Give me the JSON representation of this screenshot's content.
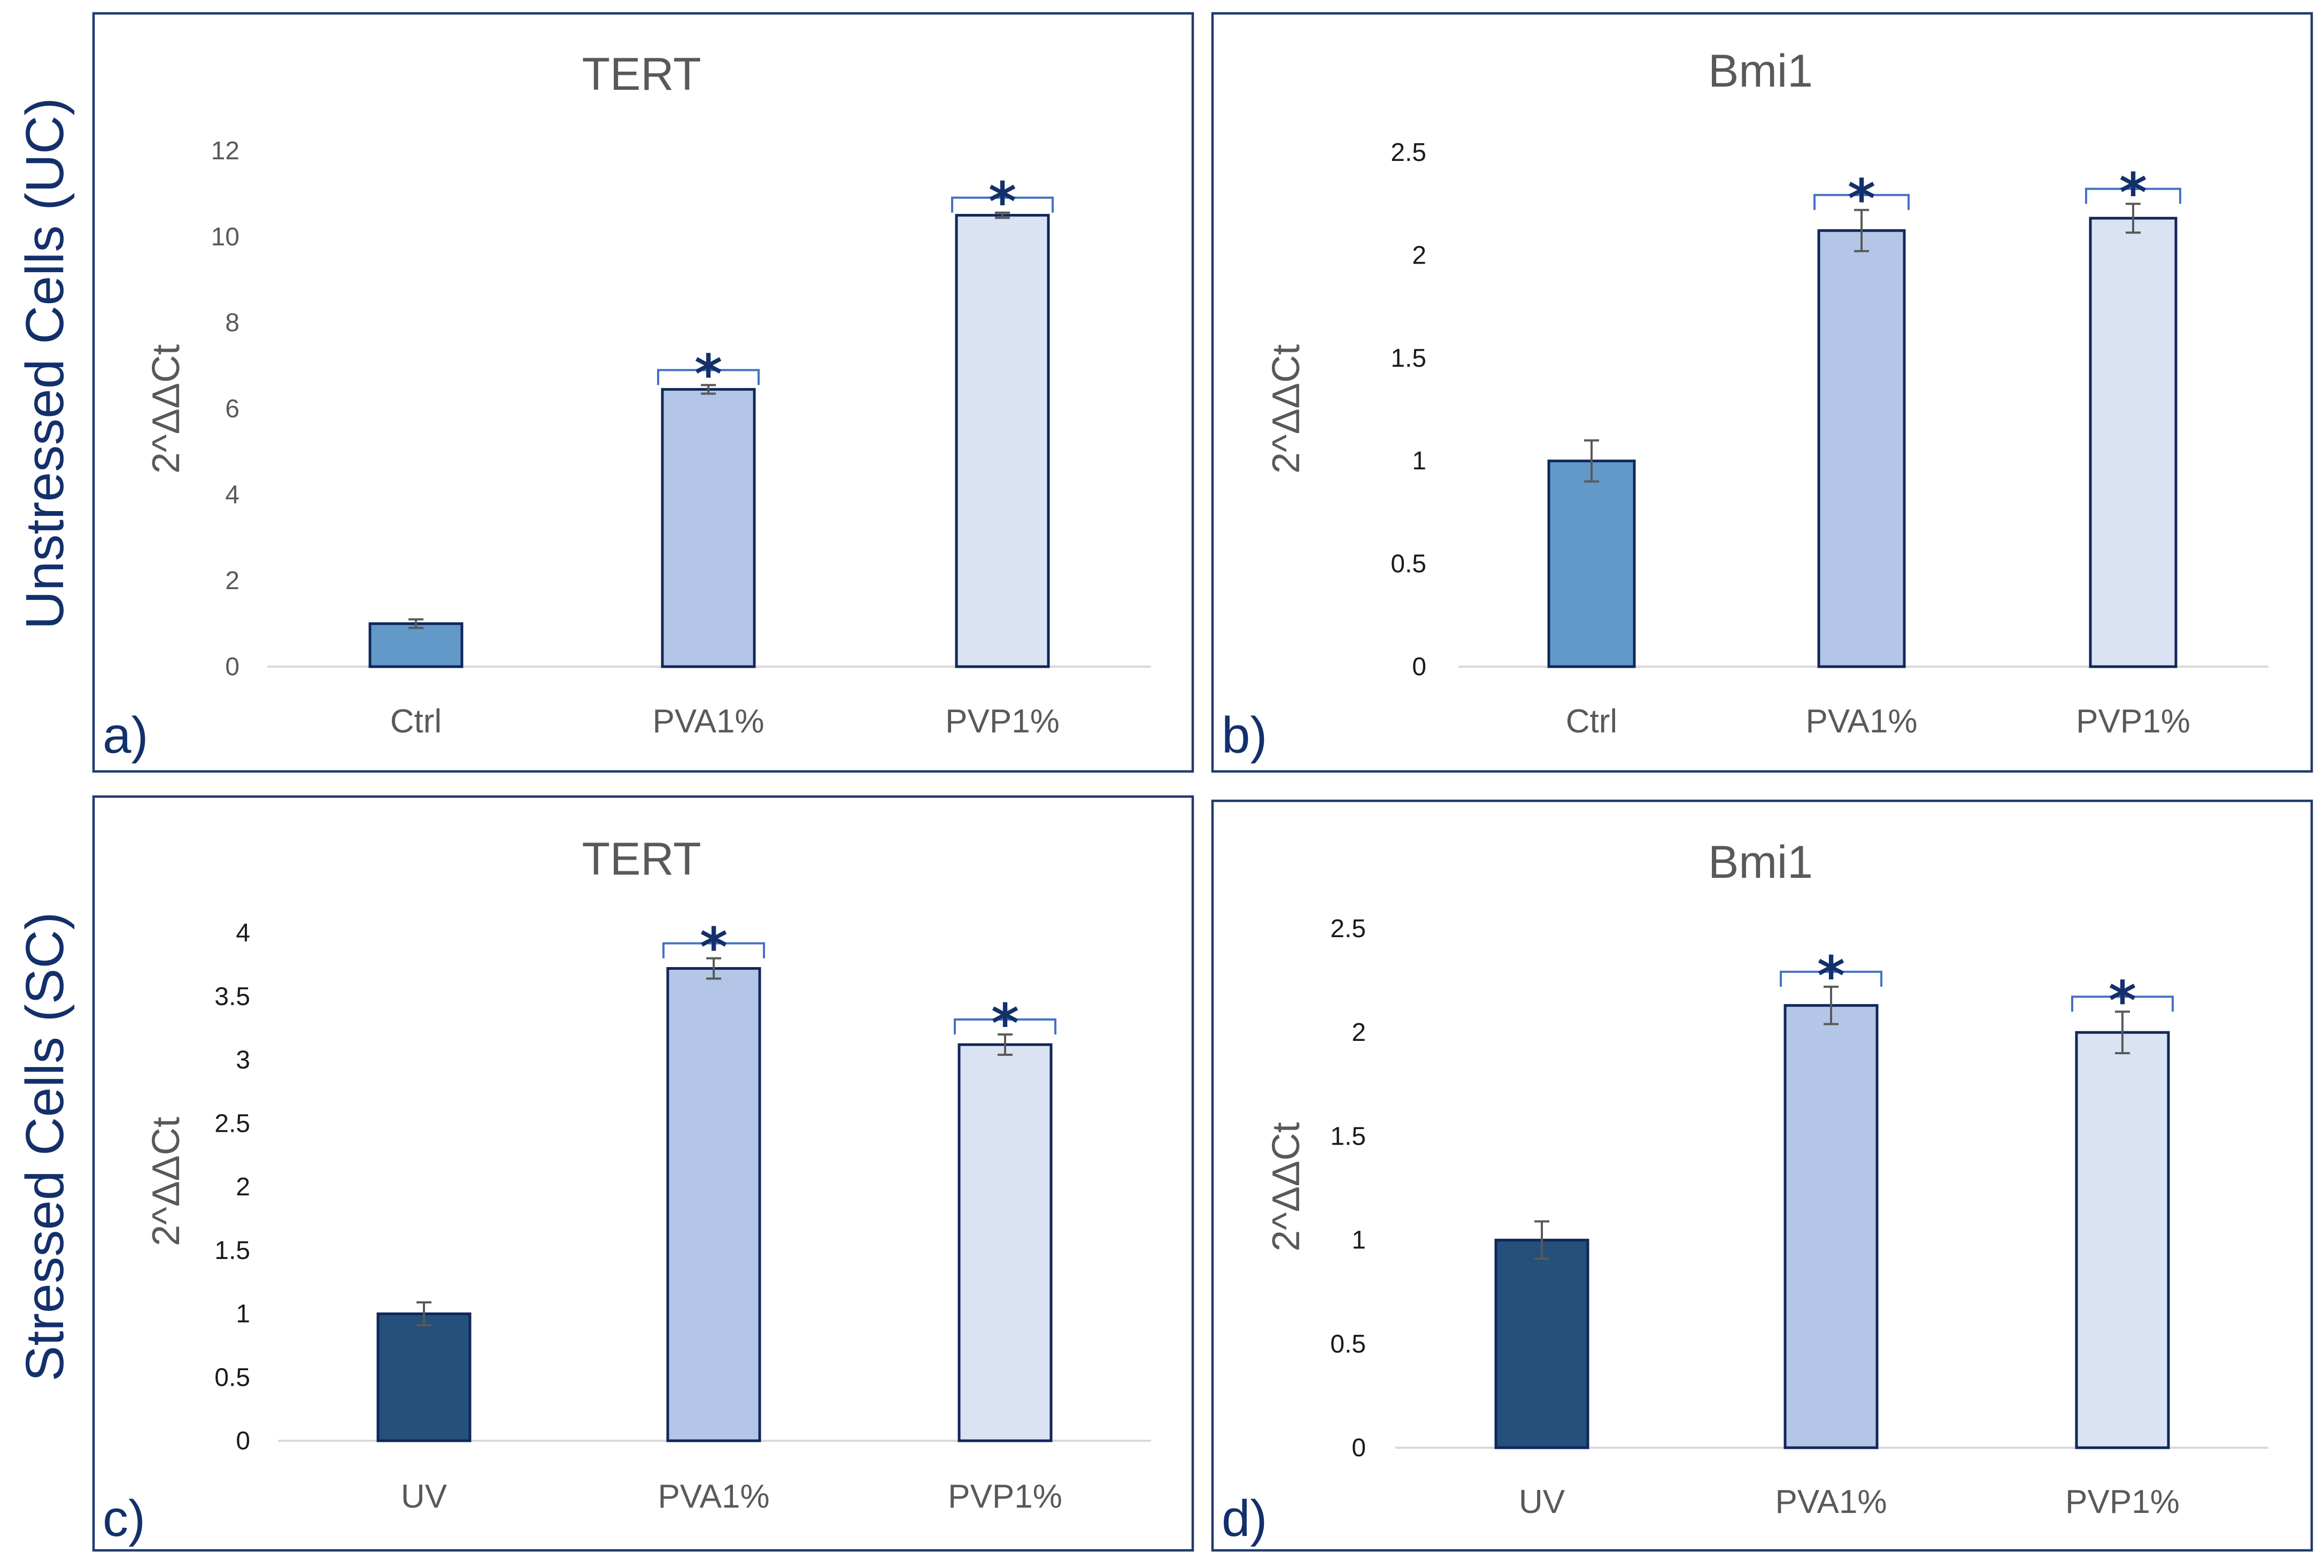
{
  "figure": {
    "row_labels": [
      "Unstressed Cells (UC)",
      "Stressed Cells (SC)"
    ],
    "colors": {
      "frame": "#1f3a6e",
      "row_label": "#13306b",
      "control_unstressed": "#6299c9",
      "control_stressed": "#24507b",
      "pva": "#b4c6e7",
      "pvp": "#dae3f3",
      "bar_outline": "#10275a",
      "error_bar": "#595959",
      "bracket": "#4472c4",
      "star": "#13306b",
      "text_gray": "#595959"
    }
  },
  "chart_data": [
    {
      "panel_label": "a)",
      "type": "bar",
      "title": "TERT",
      "xlabel": "",
      "ylabel": "2^ΔΔCt",
      "categories": [
        "Ctrl",
        "PVA1%",
        "PVP1%"
      ],
      "values": [
        1.0,
        6.45,
        10.5
      ],
      "errors": [
        0.1,
        0.1,
        0.06
      ],
      "significance": [
        "",
        "*",
        "*"
      ],
      "bar_colors": [
        "#6299c9",
        "#b4c6e7",
        "#dae3f3"
      ],
      "ylim": [
        0,
        12
      ],
      "yticks": [
        "0",
        "2",
        "4",
        "6",
        "8",
        "10",
        "12"
      ],
      "ytick_color": "#595959",
      "grid": false
    },
    {
      "panel_label": "b)",
      "type": "bar",
      "title": "Bmi1",
      "xlabel": "",
      "ylabel": "2^ΔΔCt",
      "categories": [
        "Ctrl",
        "PVA1%",
        "PVP1%"
      ],
      "values": [
        1.0,
        2.12,
        2.18
      ],
      "errors": [
        0.1,
        0.1,
        0.07
      ],
      "significance": [
        "",
        "*",
        "*"
      ],
      "bar_colors": [
        "#6299c9",
        "#b4c6e7",
        "#dae3f3"
      ],
      "ylim": [
        0,
        2.5
      ],
      "yticks": [
        "0",
        "0.5",
        "1",
        "1.5",
        "2",
        "2.5"
      ],
      "ytick_color": "#1a1a1a",
      "grid": false
    },
    {
      "panel_label": "c)",
      "type": "bar",
      "title": "TERT",
      "xlabel": "",
      "ylabel": "2^ΔΔCt",
      "categories": [
        "UV",
        "PVA1%",
        "PVP1%"
      ],
      "values": [
        1.0,
        3.72,
        3.12
      ],
      "errors": [
        0.09,
        0.08,
        0.08
      ],
      "significance": [
        "",
        "*",
        "*"
      ],
      "bar_colors": [
        "#24507b",
        "#b4c6e7",
        "#dae3f3"
      ],
      "ylim": [
        0,
        4
      ],
      "yticks": [
        "0",
        "0.5",
        "1",
        "1.5",
        "2",
        "2.5",
        "3",
        "3.5",
        "4"
      ],
      "ytick_color": "#1a1a1a",
      "grid": false
    },
    {
      "panel_label": "d)",
      "type": "bar",
      "title": "Bmi1",
      "xlabel": "",
      "ylabel": "2^ΔΔCt",
      "categories": [
        "UV",
        "PVA1%",
        "PVP1%"
      ],
      "values": [
        1.0,
        2.13,
        2.0
      ],
      "errors": [
        0.09,
        0.09,
        0.1
      ],
      "significance": [
        "",
        "*",
        "*"
      ],
      "bar_colors": [
        "#24507b",
        "#b4c6e7",
        "#dae3f3"
      ],
      "ylim": [
        0,
        2.5
      ],
      "yticks": [
        "0",
        "0.5",
        "1",
        "1.5",
        "2",
        "2.5"
      ],
      "ytick_color": "#1a1a1a",
      "grid": false
    }
  ]
}
